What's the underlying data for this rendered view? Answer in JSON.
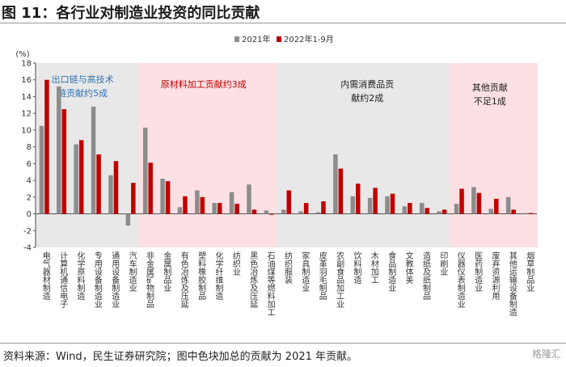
{
  "title": "图 11：各行业对制造业投资的同比贡献",
  "source_note": "资料来源：Wind，民生证券研究院；图中色块加总的贡献为 2021 年贡献。",
  "watermark": "格隆汇",
  "colors": {
    "s2021": "#8c8c8c",
    "s2022": "#c00000",
    "region_blue": "#e8e8e8",
    "region_pink": "#fde0e4",
    "region_gray": "#e8e8e8"
  },
  "chart_data": {
    "type": "bar",
    "ylabel": "(%)",
    "ylim": [
      -4,
      18
    ],
    "yticks": [
      -4,
      -2,
      0,
      2,
      4,
      6,
      8,
      10,
      12,
      14,
      16,
      18
    ],
    "legend": [
      "2021年",
      "2022年1-9月"
    ],
    "categories": [
      "电气器材制造",
      "计算机通信电子",
      "化学原料制造",
      "专用设备制造业",
      "通用设备制造业",
      "汽车制造业",
      "非金属矿物制品",
      "金属制品业",
      "有色冶炼及压延",
      "塑料橡胶制品",
      "化学纤维制造",
      "纺织业",
      "黑色冶炼及压延",
      "石油煤等燃料加工",
      "纺织服装",
      "家具制造业",
      "皮革羽毛制品",
      "农副食品加工业",
      "饮料制造",
      "木材加工",
      "食品制造业",
      "文教体美",
      "造纸及纸制品",
      "印刷业",
      "仪器仪表制造业",
      "医药制造业",
      "废弃资源利用",
      "其他运输设备制造",
      "烟草制品业"
    ],
    "series": [
      {
        "name": "2021年",
        "values": [
          10.5,
          15.2,
          8.3,
          12.8,
          4.6,
          -1.4,
          10.3,
          4.2,
          0.8,
          2.8,
          1.3,
          2.6,
          3.5,
          0.4,
          0.5,
          0.3,
          0.2,
          7.1,
          2.1,
          1.9,
          2.1,
          0.9,
          1.3,
          0.3,
          1.2,
          3.2,
          0.6,
          2.0,
          0.1
        ]
      },
      {
        "name": "2022年1-9月",
        "values": [
          16.0,
          12.5,
          8.8,
          7.1,
          6.3,
          3.7,
          6.1,
          3.9,
          2.1,
          2.0,
          1.3,
          1.2,
          0.5,
          -0.1,
          2.8,
          1.3,
          1.5,
          5.4,
          3.6,
          3.1,
          2.4,
          1.3,
          0.7,
          0.5,
          3.0,
          2.5,
          1.8,
          0.5,
          0.1
        ]
      }
    ],
    "regions": [
      {
        "label1": "出口链与高技术",
        "label2": "链贡献约5成",
        "start": 0,
        "end": 5,
        "fill": "#e8e8e8",
        "color": "#2e75b6"
      },
      {
        "label1": "原材料加工贡献约3成",
        "label2": "",
        "start": 6,
        "end": 13,
        "fill": "#fde0e4",
        "color": "#c00000"
      },
      {
        "label1": "内需消费品贡",
        "label2": "献约2成",
        "start": 14,
        "end": 23,
        "fill": "#e8e8e8",
        "color": "#1a1a1a"
      },
      {
        "label1": "其他贡献",
        "label2": "不足1成",
        "start": 24,
        "end": 28,
        "fill": "#fde0e4",
        "color": "#1a1a1a"
      }
    ]
  }
}
